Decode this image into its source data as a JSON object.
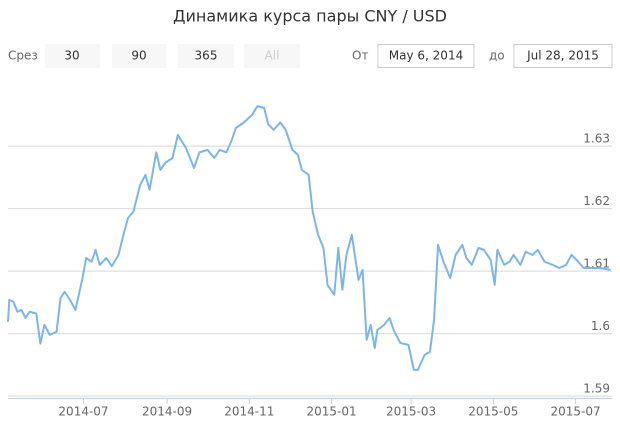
{
  "chart_data": {
    "type": "line",
    "title": "Динамика курса пары CNY / USD",
    "range_label": "Срез",
    "range_buttons": [
      "30",
      "90",
      "365",
      "All"
    ],
    "from_label": "От",
    "from": "May 6, 2014",
    "to_label": "до",
    "to": "Jul 28, 2015",
    "x": [
      "2014-05-06",
      "2014-05-07",
      "2014-05-10",
      "2014-05-13",
      "2014-05-16",
      "2014-05-19",
      "2014-05-22",
      "2014-05-27",
      "2014-05-30",
      "2014-06-02",
      "2014-06-06",
      "2014-06-11",
      "2014-06-14",
      "2014-06-17",
      "2014-06-21",
      "2014-06-25",
      "2014-06-30",
      "2014-07-03",
      "2014-07-07",
      "2014-07-10",
      "2014-07-13",
      "2014-07-18",
      "2014-07-22",
      "2014-07-27",
      "2014-07-30",
      "2014-08-03",
      "2014-08-07",
      "2014-08-12",
      "2014-08-16",
      "2014-08-19",
      "2014-08-24",
      "2014-08-27",
      "2014-08-31",
      "2014-09-05",
      "2014-09-09",
      "2014-09-15",
      "2014-09-21",
      "2014-09-25",
      "2014-10-01",
      "2014-10-06",
      "2014-10-10",
      "2014-10-15",
      "2014-10-19",
      "2014-10-22",
      "2014-10-28",
      "2014-11-03",
      "2014-11-07",
      "2014-11-12",
      "2014-11-15",
      "2014-11-19",
      "2014-11-24",
      "2014-11-28",
      "2014-12-03",
      "2014-12-07",
      "2014-12-10",
      "2014-12-15",
      "2014-12-18",
      "2014-12-22",
      "2014-12-26",
      "2014-12-29",
      "2015-01-03",
      "2015-01-06",
      "2015-01-09",
      "2015-01-12",
      "2015-01-16",
      "2015-01-21",
      "2015-01-24",
      "2015-01-27",
      "2015-01-30",
      "2015-02-02",
      "2015-02-04",
      "2015-02-09",
      "2015-02-13",
      "2015-02-16",
      "2015-02-21",
      "2015-02-27",
      "2015-03-03",
      "2015-03-06",
      "2015-03-11",
      "2015-03-15",
      "2015-03-18",
      "2015-03-21",
      "2015-03-25",
      "2015-03-30",
      "2015-04-03",
      "2015-04-08",
      "2015-04-11",
      "2015-04-15",
      "2015-04-20",
      "2015-04-24",
      "2015-04-29",
      "2015-05-02",
      "2015-05-04",
      "2015-05-09",
      "2015-05-13",
      "2015-05-16",
      "2015-05-21",
      "2015-05-25",
      "2015-05-30",
      "2015-06-03",
      "2015-06-08",
      "2015-06-14",
      "2015-06-19",
      "2015-06-24",
      "2015-06-28",
      "2015-07-03",
      "2015-07-07",
      "2015-07-13",
      "2015-07-19",
      "2015-07-27"
    ],
    "series": [
      {
        "color": "#7cb5ec",
        "values": [
          1.6019,
          1.6054,
          1.6051,
          1.6035,
          1.6038,
          1.6025,
          1.6035,
          1.6032,
          1.5984,
          1.6014,
          1.5998,
          1.6003,
          1.6057,
          1.6067,
          1.6054,
          1.6038,
          1.6086,
          1.6121,
          1.6115,
          1.6134,
          1.611,
          1.6121,
          1.6108,
          1.6126,
          1.6153,
          1.6185,
          1.6195,
          1.6238,
          1.6254,
          1.623,
          1.629,
          1.6262,
          1.6274,
          1.6281,
          1.6318,
          1.6297,
          1.6265,
          1.629,
          1.6294,
          1.6281,
          1.6294,
          1.629,
          1.631,
          1.6329,
          1.6338,
          1.635,
          1.6364,
          1.6361,
          1.6335,
          1.6326,
          1.6338,
          1.6326,
          1.6294,
          1.6286,
          1.6262,
          1.6254,
          1.6195,
          1.6158,
          1.6137,
          1.6078,
          1.6062,
          1.6137,
          1.607,
          1.6126,
          1.6158,
          1.6086,
          1.6102,
          1.599,
          1.6014,
          1.5977,
          1.6006,
          1.6014,
          1.6025,
          1.6006,
          1.5985,
          1.5982,
          1.5942,
          1.5942,
          1.5966,
          1.5971,
          1.6022,
          1.6142,
          1.6115,
          1.6089,
          1.6126,
          1.6142,
          1.6121,
          1.611,
          1.6137,
          1.6134,
          1.6118,
          1.6078,
          1.6134,
          1.611,
          1.6115,
          1.6126,
          1.611,
          1.6131,
          1.6126,
          1.6134,
          1.6115,
          1.611,
          1.6105,
          1.611,
          1.6126,
          1.6115,
          1.6105,
          1.6105,
          1.6105,
          1.6102
        ]
      }
    ],
    "xlim": [
      "2014-05-06",
      "2015-07-28"
    ],
    "xticks": [
      {
        "value": "2014-07-01",
        "label": "2014-07"
      },
      {
        "value": "2014-09-01",
        "label": "2014-09"
      },
      {
        "value": "2014-11-01",
        "label": "2014-11"
      },
      {
        "value": "2015-01-01",
        "label": "2015-01"
      },
      {
        "value": "2015-03-01",
        "label": "2015-03"
      },
      {
        "value": "2015-05-01",
        "label": "2015-05"
      },
      {
        "value": "2015-07-01",
        "label": "2015-07"
      }
    ],
    "ylim": [
      1.5897,
      1.6409
    ],
    "yticks": [
      1.59,
      1.6,
      1.61,
      1.62,
      1.63
    ],
    "grid": true
  }
}
